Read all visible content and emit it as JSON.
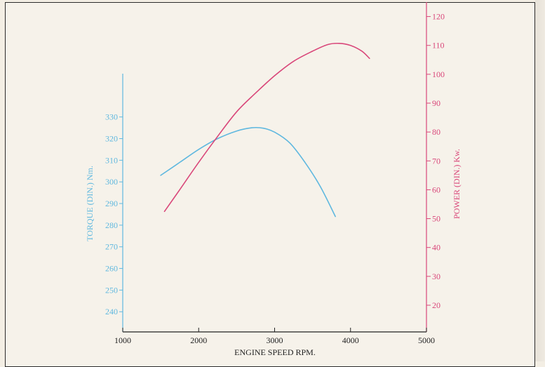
{
  "colors": {
    "torque": "#5fb8df",
    "power": "#d9477a",
    "axis": "#222222",
    "background": "#f6f2ea"
  },
  "chart_data": {
    "type": "line",
    "xlabel": "ENGINE SPEED RPM.",
    "ylabel_left": "TORQUE (DIN.) Nm.",
    "ylabel_right": "POWER (DIN.) Kw.",
    "xlim": [
      1000,
      5000
    ],
    "ylim_left": [
      231,
      350
    ],
    "ylim_right": [
      11,
      125
    ],
    "x_ticks": [
      1000,
      2000,
      3000,
      4000,
      5000
    ],
    "y_ticks_left": [
      240,
      250,
      260,
      270,
      280,
      290,
      300,
      310,
      320,
      330
    ],
    "y_ticks_right": [
      20,
      30,
      40,
      50,
      60,
      70,
      80,
      90,
      100,
      110,
      120
    ],
    "grid": false,
    "series": [
      {
        "axis": "left",
        "x": [
          1500,
          1750,
          2000,
          2250,
          2500,
          2700,
          2850,
          3000,
          3200,
          3400,
          3600,
          3800
        ],
        "values": [
          303,
          309,
          315,
          320,
          323.5,
          325,
          324.8,
          323,
          318,
          309,
          298,
          284
        ]
      },
      {
        "axis": "right",
        "x": [
          1550,
          1750,
          2000,
          2250,
          2500,
          2750,
          3000,
          3250,
          3500,
          3700,
          3850,
          4000,
          4150,
          4250
        ],
        "values": [
          52.5,
          60,
          69.5,
          78.5,
          87,
          93.5,
          99.5,
          104.5,
          108,
          110.3,
          110.7,
          110,
          108,
          105.5
        ]
      }
    ]
  }
}
